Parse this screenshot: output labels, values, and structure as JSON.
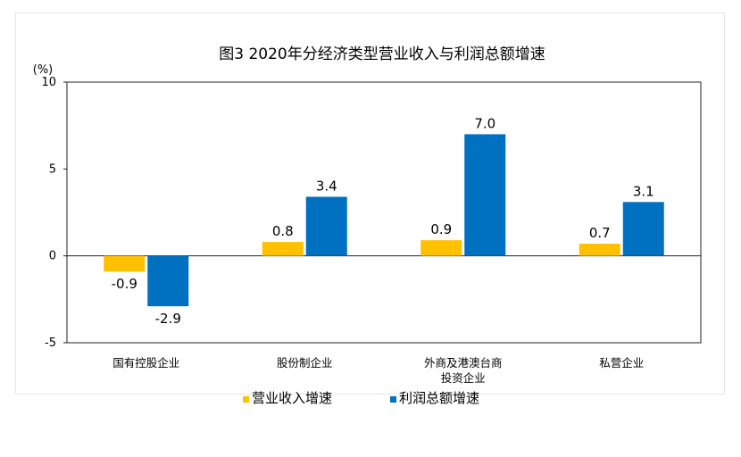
{
  "chart_data": {
    "type": "bar",
    "title": "图3 2020年分经济类型营业收入与利润总额增速",
    "yunit": "(%)",
    "ylim": [
      -5,
      10
    ],
    "yticks": [
      "10",
      "5",
      "0",
      "-5"
    ],
    "categories": [
      [
        "国有控股企业"
      ],
      [
        "股份制企业"
      ],
      [
        "外商及港澳台商",
        "投资企业"
      ],
      [
        "私营企业"
      ]
    ],
    "series": [
      {
        "name": "营业收入增速",
        "values": [
          -0.9,
          0.8,
          0.9,
          0.7
        ],
        "color": "#FFC000"
      },
      {
        "name": "利润总额增速",
        "values": [
          -2.9,
          3.4,
          7.0,
          3.1
        ],
        "color": "#0070C0"
      }
    ],
    "value_labels": [
      [
        "-0.9",
        "0.8",
        "0.9",
        "0.7"
      ],
      [
        "-2.9",
        "3.4",
        "7.0",
        "3.1"
      ]
    ],
    "legend_position": "bottom",
    "grid": false
  }
}
